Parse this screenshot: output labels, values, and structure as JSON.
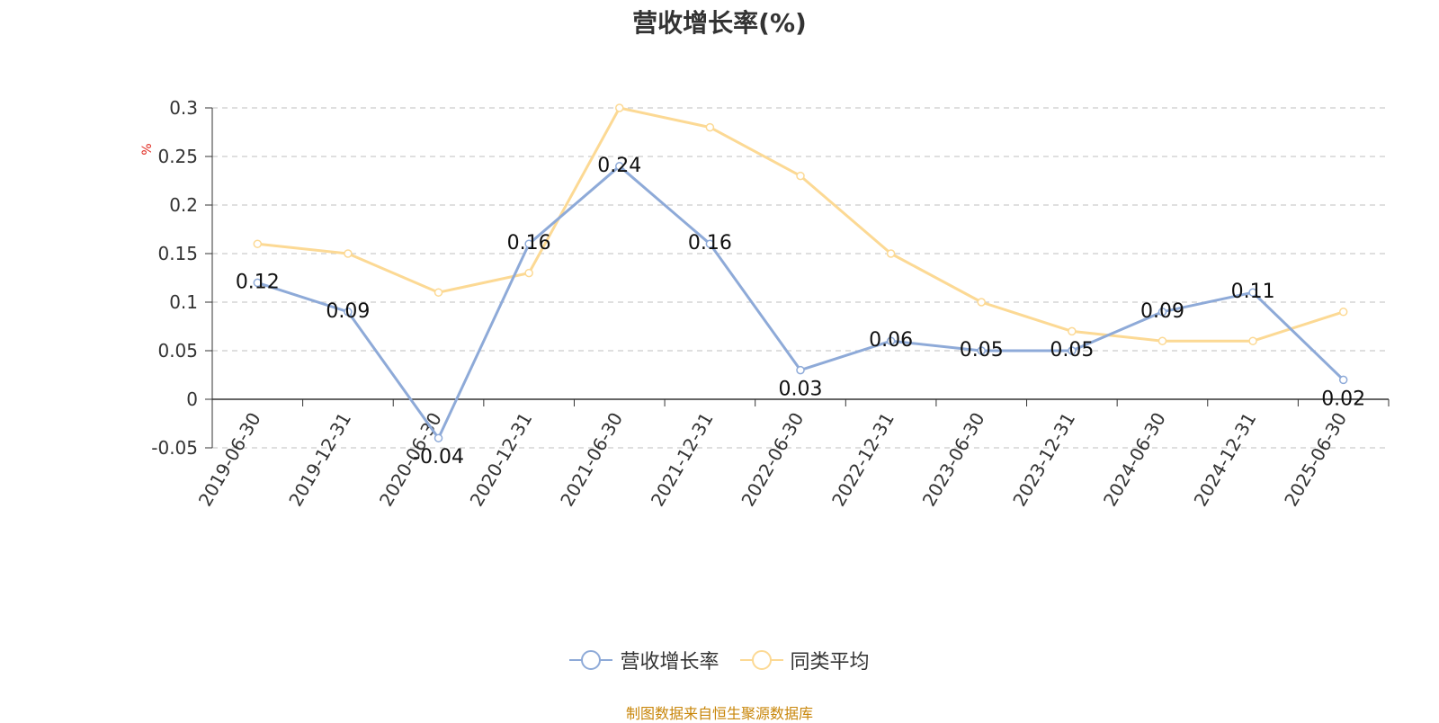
{
  "chart_data": {
    "type": "line",
    "title": "营收增长率(%)",
    "ylabel": "%",
    "ylim": [
      -0.05,
      0.3
    ],
    "yticks": [
      -0.05,
      0,
      0.05,
      0.1,
      0.15,
      0.2,
      0.25,
      0.3
    ],
    "ytick_labels": [
      "-0.05",
      "0",
      "0.05",
      "0.1",
      "0.15",
      "0.2",
      "0.25",
      "0.3"
    ],
    "grid": true,
    "legend_position": "bottom",
    "categories": [
      "2019-06-30",
      "2019-12-31",
      "2020-06-30",
      "2020-12-31",
      "2021-06-30",
      "2021-12-31",
      "2022-06-30",
      "2022-12-31",
      "2023-06-30",
      "2023-12-31",
      "2024-06-30",
      "2024-12-31",
      "2025-06-30"
    ],
    "series": [
      {
        "name": "营收增长率",
        "color": "#8eaad8",
        "values": [
          0.12,
          0.09,
          -0.04,
          0.16,
          0.24,
          0.16,
          0.03,
          0.06,
          0.05,
          0.05,
          0.09,
          0.11,
          0.02
        ],
        "data_labels": [
          "0.12",
          "0.09",
          "-0.04",
          "0.16",
          "0.24",
          "0.16",
          "0.03",
          "0.06",
          "0.05",
          "0.05",
          "0.09",
          "0.11",
          "0.02"
        ]
      },
      {
        "name": "同类平均",
        "color": "#fcd994",
        "values": [
          0.16,
          0.15,
          0.11,
          0.13,
          0.3,
          0.28,
          0.23,
          0.15,
          0.1,
          0.07,
          0.06,
          0.06,
          0.09
        ]
      }
    ]
  },
  "legend": {
    "items": [
      "营收增长率",
      "同类平均"
    ]
  },
  "source_note": "制图数据来自恒生聚源数据库"
}
